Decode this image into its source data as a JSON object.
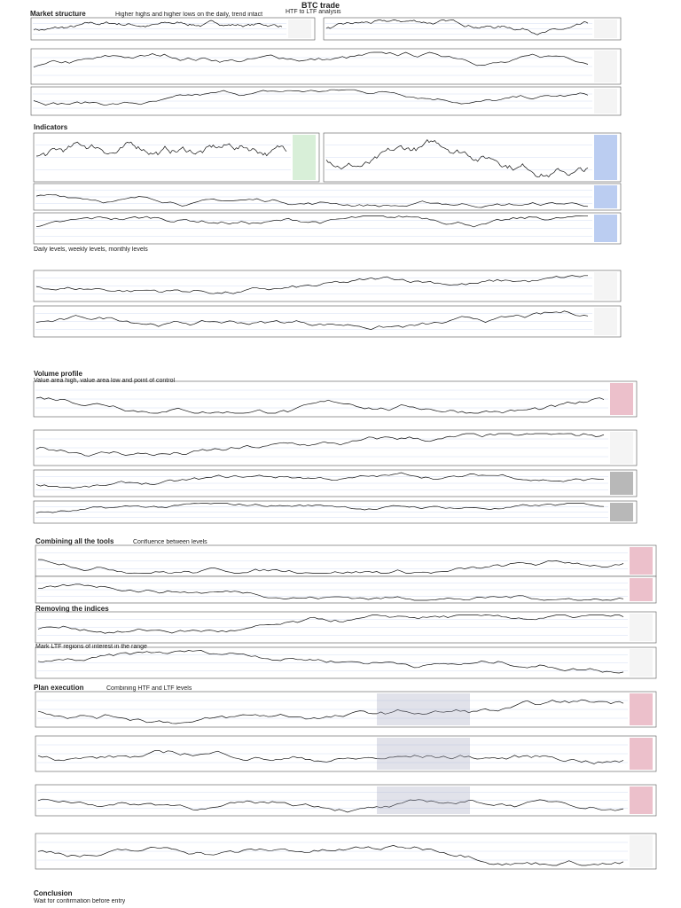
{
  "header": {
    "title": "BTC trade",
    "subtitle": "HTF to LTF analysis"
  },
  "sections": [
    {
      "heading": "Market structure",
      "caption": "Higher highs and higher lows on the daily, trend intact"
    },
    {
      "heading": "Indicators",
      "caption": "Daily levels, weekly levels, monthly levels"
    },
    {
      "heading": "Volume profile",
      "caption": "Value area high, value area low and point of control"
    },
    {
      "heading": "Combining all the tools",
      "caption": "Confluence between levels"
    },
    {
      "heading": "Removing the indices",
      "caption": "Mark LTF regions of interest in the range"
    },
    {
      "heading": "Plan execution",
      "caption": "Combining HTF and LTF levels"
    },
    {
      "heading": "Conclusion",
      "caption": "Wait for confirmation before entry"
    }
  ]
}
